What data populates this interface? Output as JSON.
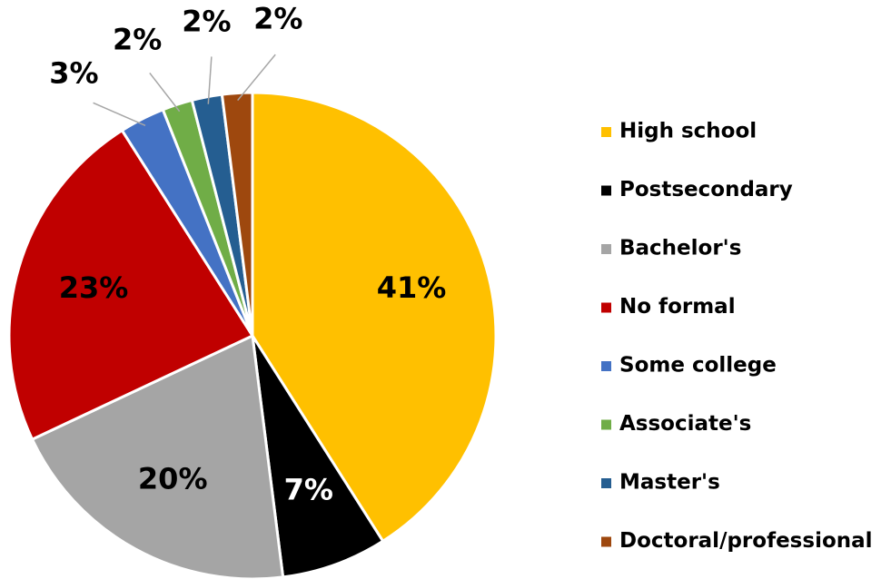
{
  "chart_data": {
    "type": "pie",
    "categories": [
      "High school",
      "Postsecondary",
      "Bachelor's",
      "No formal",
      "Some college",
      "Associate's",
      "Master's",
      "Doctoral/professional"
    ],
    "values": [
      41,
      7,
      20,
      23,
      3,
      2,
      2,
      2
    ],
    "value_labels": [
      "41%",
      "7%",
      "20%",
      "23%",
      "3%",
      "2%",
      "2%",
      "2%"
    ],
    "colors": [
      "#FFC000",
      "#000000",
      "#A5A5A5",
      "#C00000",
      "#4472C4",
      "#70AD47",
      "#255E91",
      "#9E480E"
    ],
    "label_colors": [
      "#000000",
      "#ffffff",
      "#000000",
      "#000000",
      "#000000",
      "#000000",
      "#000000",
      "#000000"
    ],
    "legend": "right"
  }
}
